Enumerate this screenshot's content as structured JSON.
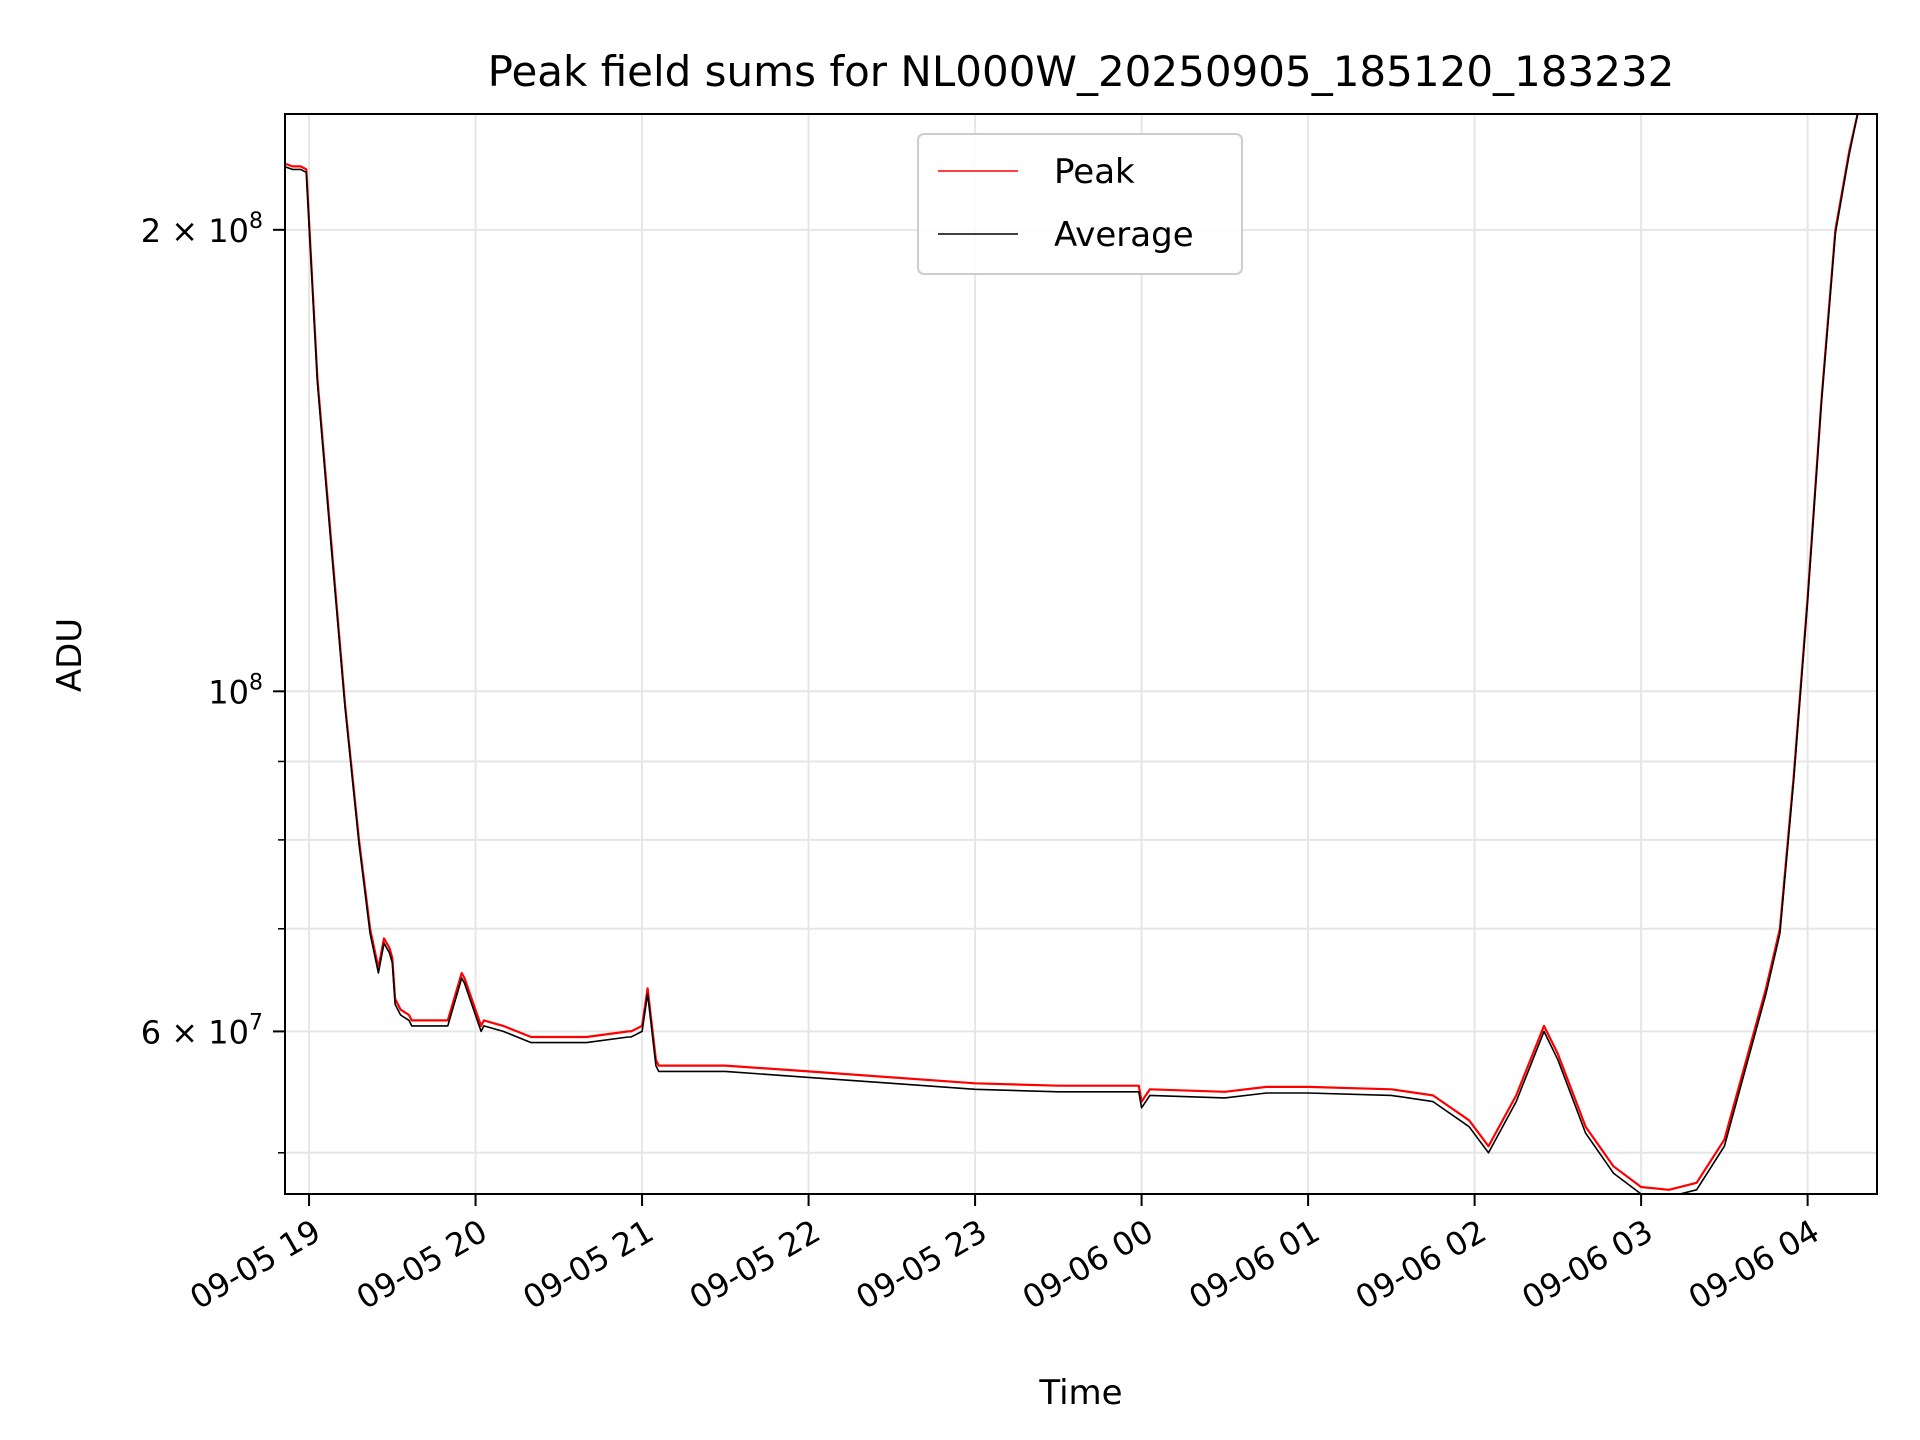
{
  "chart_data": {
    "type": "line",
    "title": "Peak field sums for NL000W_20250905_185120_183232",
    "xlabel": "Time",
    "ylabel": "ADU",
    "yscale": "log",
    "ylim": [
      47000000,
      238000000
    ],
    "xlim": [
      "2025-09-05 18:51:20",
      "2025-09-06 04:25:00"
    ],
    "grid": true,
    "legend": {
      "placement": "top-center"
    },
    "x_ticks": [
      {
        "t": "2025-09-05 19:00",
        "label": "09-05 19"
      },
      {
        "t": "2025-09-05 20:00",
        "label": "09-05 20"
      },
      {
        "t": "2025-09-05 21:00",
        "label": "09-05 21"
      },
      {
        "t": "2025-09-05 22:00",
        "label": "09-05 22"
      },
      {
        "t": "2025-09-05 23:00",
        "label": "09-05 23"
      },
      {
        "t": "2025-09-06 00:00",
        "label": "09-06 00"
      },
      {
        "t": "2025-09-06 01:00",
        "label": "09-06 01"
      },
      {
        "t": "2025-09-06 02:00",
        "label": "09-06 02"
      },
      {
        "t": "2025-09-06 03:00",
        "label": "09-06 03"
      },
      {
        "t": "2025-09-06 04:00",
        "label": "09-06 04"
      }
    ],
    "y_ticks": [
      {
        "value": 200000000,
        "mantissa": "2 × 10",
        "exp": "8"
      },
      {
        "value": 100000000,
        "mantissa": "10",
        "exp": "8"
      },
      {
        "value": 60000000,
        "mantissa": "6 × 10",
        "exp": "7"
      }
    ],
    "y_minor_ticks": [
      50000000,
      70000000,
      80000000,
      90000000
    ],
    "x": [
      "2025-09-05 18:51",
      "2025-09-05 18:54",
      "2025-09-05 18:57",
      "2025-09-05 18:59",
      "2025-09-05 19:03",
      "2025-09-05 19:08",
      "2025-09-05 19:13",
      "2025-09-05 19:18",
      "2025-09-05 19:22",
      "2025-09-05 19:25",
      "2025-09-05 19:27",
      "2025-09-05 19:29",
      "2025-09-05 19:30",
      "2025-09-05 19:31",
      "2025-09-05 19:33",
      "2025-09-05 19:36",
      "2025-09-05 19:37",
      "2025-09-05 19:41",
      "2025-09-05 19:50",
      "2025-09-05 19:55",
      "2025-09-05 19:56",
      "2025-09-05 20:02",
      "2025-09-05 20:03",
      "2025-09-05 20:10",
      "2025-09-05 20:20",
      "2025-09-05 20:24",
      "2025-09-05 20:25",
      "2025-09-05 20:40",
      "2025-09-05 20:55",
      "2025-09-05 20:56",
      "2025-09-05 21:00",
      "2025-09-05 21:02",
      "2025-09-05 21:05",
      "2025-09-05 21:06",
      "2025-09-05 21:30",
      "2025-09-05 22:00",
      "2025-09-05 22:30",
      "2025-09-05 23:00",
      "2025-09-05 23:30",
      "2025-09-05 23:59",
      "2025-09-06 00:00",
      "2025-09-06 00:03",
      "2025-09-06 00:30",
      "2025-09-06 00:45",
      "2025-09-06 01:00",
      "2025-09-06 01:30",
      "2025-09-06 01:45",
      "2025-09-06 01:58",
      "2025-09-06 02:05",
      "2025-09-06 02:15",
      "2025-09-06 02:25",
      "2025-09-06 02:30",
      "2025-09-06 02:40",
      "2025-09-06 02:50",
      "2025-09-06 03:00",
      "2025-09-06 03:10",
      "2025-09-06 03:20",
      "2025-09-06 03:30",
      "2025-09-06 03:45",
      "2025-09-06 03:50",
      "2025-09-06 03:55",
      "2025-09-06 04:00",
      "2025-09-06 04:05",
      "2025-09-06 04:10",
      "2025-09-06 04:15",
      "2025-09-06 04:18"
    ],
    "series": [
      {
        "name": "Peak",
        "color": "#ff0000",
        "values": [
          221000000,
          220000000,
          220000000,
          219000000,
          160000000,
          125000000,
          98000000,
          80000000,
          70000000,
          66000000,
          69000000,
          68000000,
          67000000,
          63000000,
          62000000,
          61500000,
          61000000,
          61000000,
          61000000,
          65500000,
          65000000,
          60500000,
          61000000,
          60500000,
          59500000,
          59500000,
          59500000,
          59500000,
          60000000,
          60000000,
          60500000,
          64000000,
          57500000,
          57000000,
          57000000,
          56500000,
          56000000,
          55500000,
          55300000,
          55300000,
          54000000,
          55000000,
          54800000,
          55200000,
          55200000,
          55000000,
          54500000,
          52500000,
          50500000,
          54500000,
          60500000,
          58000000,
          52000000,
          49000000,
          47500000,
          47300000,
          47800000,
          51000000,
          64000000,
          70000000,
          88000000,
          115000000,
          155000000,
          200000000,
          225000000,
          238000000
        ]
      },
      {
        "name": "Average",
        "color": "#000000",
        "values": [
          220000000,
          219000000,
          219000000,
          218000000,
          159000000,
          124000000,
          97500000,
          79500000,
          69500000,
          65500000,
          68500000,
          67500000,
          66500000,
          62500000,
          61500000,
          61000000,
          60500000,
          60500000,
          60500000,
          65000000,
          64500000,
          60000000,
          60500000,
          60000000,
          59000000,
          59000000,
          59000000,
          59000000,
          59500000,
          59500000,
          60000000,
          63500000,
          57000000,
          56500000,
          56500000,
          56000000,
          55500000,
          55000000,
          54800000,
          54800000,
          53500000,
          54500000,
          54300000,
          54700000,
          54700000,
          54500000,
          54000000,
          52000000,
          50000000,
          54000000,
          60000000,
          57500000,
          51500000,
          48500000,
          47000000,
          46800000,
          47300000,
          50500000,
          63500000,
          69500000,
          87500000,
          114500000,
          154500000,
          199000000,
          224000000,
          238000000
        ]
      }
    ]
  }
}
